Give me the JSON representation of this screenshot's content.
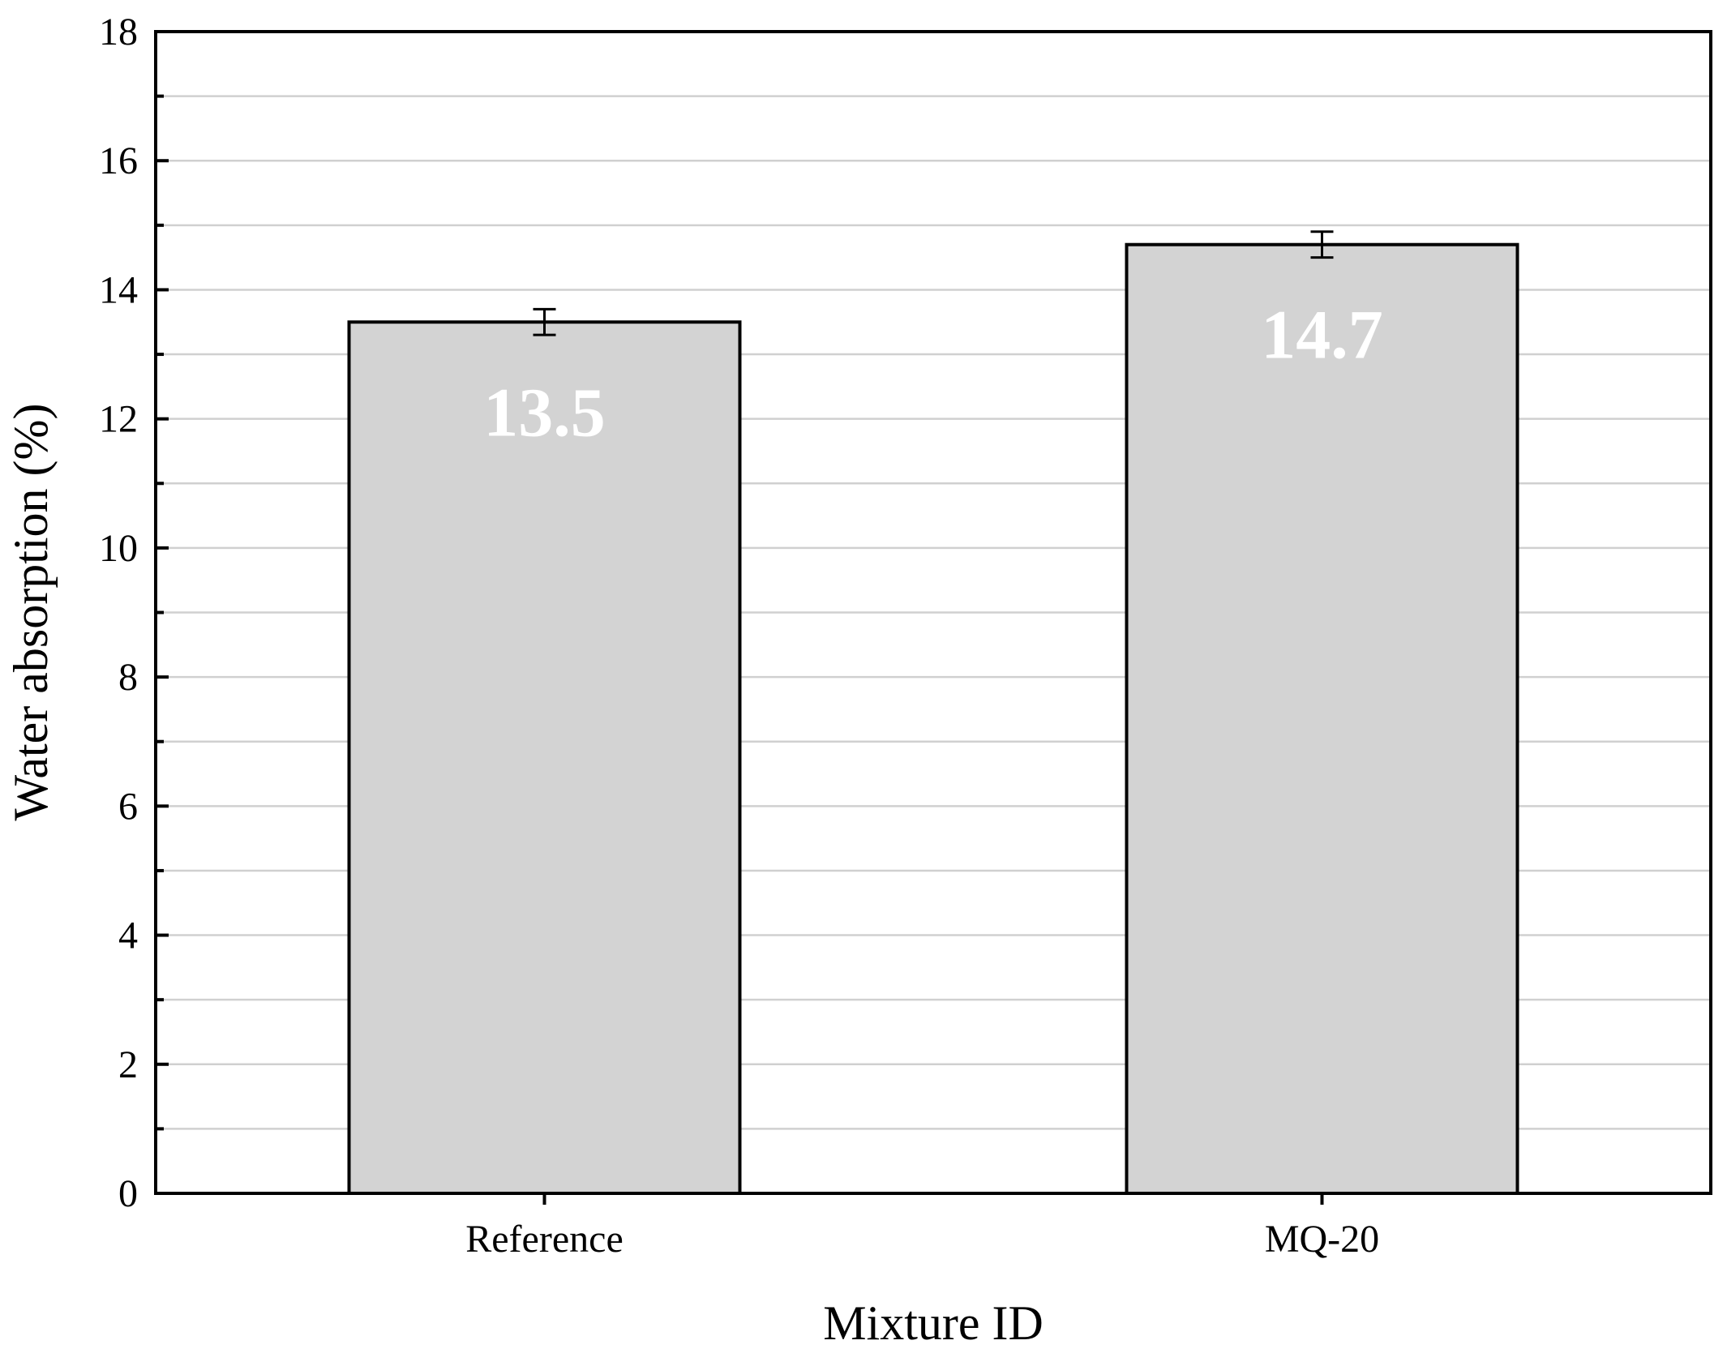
{
  "chart_data": {
    "type": "bar",
    "title": "",
    "xlabel": "Mixture ID",
    "ylabel": "Water absorption (%)",
    "categories": [
      "Reference",
      "MQ-20"
    ],
    "values": [
      13.5,
      14.7
    ],
    "value_labels": [
      "13.5",
      "14.7"
    ],
    "errors": [
      0.2,
      0.2
    ],
    "ylim": [
      0,
      18
    ],
    "yticks": [
      0,
      2,
      4,
      6,
      8,
      10,
      12,
      14,
      16,
      18
    ],
    "ytick_labels": [
      "0",
      "2",
      "4",
      "6",
      "8",
      "10",
      "12",
      "14",
      "16",
      "18"
    ],
    "minor_ytick_step": 1,
    "grid": "horizontal",
    "legend": "none",
    "colors": {
      "bar_fill": "#d3d3d3",
      "bar_stroke": "#000000",
      "grid": "#d0d0d0",
      "value_label": "#ffffff"
    }
  }
}
